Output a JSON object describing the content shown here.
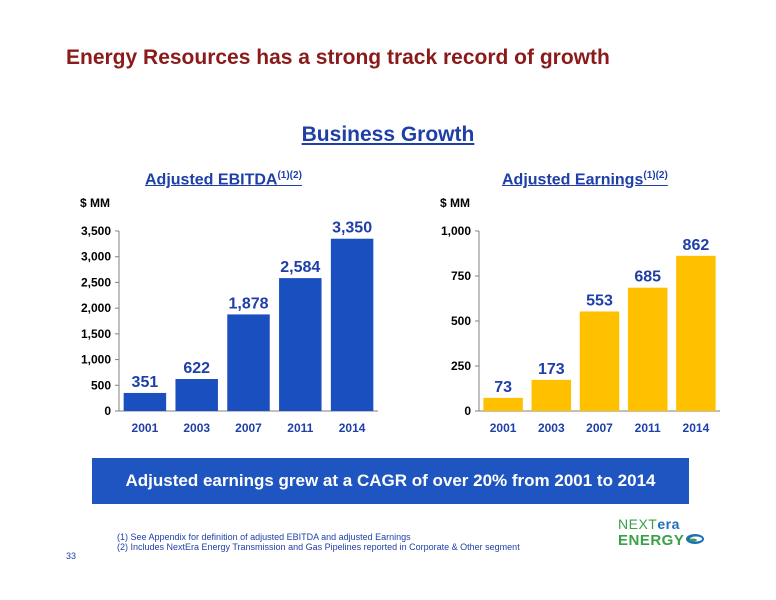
{
  "page": {
    "title": "Energy Resources has a strong track record of growth",
    "subtitle": "Business Growth",
    "banner": "Adjusted earnings grew at a CAGR of over 20% from 2001 to 2014",
    "footnotes": [
      "(1)  See Appendix for definition of adjusted EBITDA and adjusted Earnings",
      "(2)  Includes NextEra Energy Transmission and Gas Pipelines reported in Corporate & Other segment"
    ],
    "page_number": "33",
    "logo": {
      "line1_a": "NEXT",
      "line1_b": "era",
      "line2": "ENERGY"
    }
  },
  "chart_data": [
    {
      "type": "bar",
      "title": "Adjusted EBITDA",
      "title_superscript": "(1)(2)",
      "unit_label": "$ MM",
      "categories": [
        "2001",
        "2003",
        "2007",
        "2011",
        "2014"
      ],
      "values": [
        351,
        622,
        1878,
        2584,
        3350
      ],
      "value_labels": [
        "351",
        "622",
        "1,878",
        "2,584",
        "3,350"
      ],
      "ylim": [
        0,
        3500
      ],
      "yticks": [
        0,
        500,
        1000,
        1500,
        2000,
        2500,
        3000,
        3500
      ],
      "ytick_labels": [
        "0",
        "500",
        "1,000",
        "1,500",
        "2,000",
        "2,500",
        "3,000",
        "3,500"
      ],
      "bar_color": "#1a4fbf",
      "label_color": "#1f3fa8",
      "grid": false
    },
    {
      "type": "bar",
      "title": "Adjusted Earnings",
      "title_superscript": "(1)(2)",
      "unit_label": "$ MM",
      "categories": [
        "2001",
        "2003",
        "2007",
        "2011",
        "2014"
      ],
      "values": [
        73,
        173,
        553,
        685,
        862
      ],
      "value_labels": [
        "73",
        "173",
        "553",
        "685",
        "862"
      ],
      "ylim": [
        0,
        1000
      ],
      "yticks": [
        0,
        250,
        500,
        750,
        1000
      ],
      "ytick_labels": [
        "0",
        "250",
        "500",
        "750",
        "1,000"
      ],
      "bar_color": "#ffc000",
      "label_color": "#1f3fa8",
      "grid": false
    }
  ]
}
